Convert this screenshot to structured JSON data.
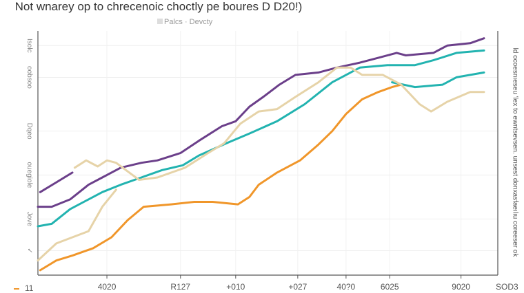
{
  "title": "Not wnarey op to chrecenoic choctly pe boures D D20!)",
  "legend": {
    "label": "Palcs · Devcty",
    "swatch": "#dddddd"
  },
  "corner_note": "11",
  "right_label": "ld ocoesnıeseu 'lex to ewntsevsen. unsest donxasfaeılıu coreeser ok",
  "chart_data": {
    "type": "line",
    "title": "Not wnarey op to chrecenoic choctly pe boures D D20!)",
    "xlim": [
      0,
      100
    ],
    "ylim": [
      0,
      100
    ],
    "grid": true,
    "legend_position": "top",
    "x_ticks": [
      {
        "value": 15,
        "label": "4020"
      },
      {
        "value": 31,
        "label": "R127"
      },
      {
        "value": 43,
        "label": "+010"
      },
      {
        "value": 56.5,
        "label": "+027"
      },
      {
        "value": 67,
        "label": "40?0"
      },
      {
        "value": 76.5,
        "label": "6025"
      },
      {
        "value": 92,
        "label": "9020"
      },
      {
        "value": 102,
        "label": "SOD3"
      }
    ],
    "y_ticks": [
      {
        "value": 94,
        "label": "Isolc"
      },
      {
        "value": 81,
        "label": "oobsoo"
      },
      {
        "value": 59,
        "label": "Dqeo"
      },
      {
        "value": 41,
        "label": "ouegiole"
      },
      {
        "value": 23,
        "label": "Jove"
      },
      {
        "value": 10,
        "label": "✓"
      }
    ],
    "series": [
      {
        "color": "#6b3f8a",
        "points": [
          [
            0.5,
            34
          ],
          [
            4,
            38
          ],
          [
            7.5,
            42
          ]
        ]
      },
      {
        "color": "#6b3f8a",
        "points": [
          [
            0,
            28
          ],
          [
            3,
            28
          ],
          [
            7,
            31
          ],
          [
            11,
            37
          ],
          [
            14,
            40
          ],
          [
            18,
            44
          ],
          [
            22.5,
            46
          ],
          [
            26,
            47
          ],
          [
            31,
            50
          ],
          [
            35,
            55
          ],
          [
            40,
            61
          ],
          [
            43,
            63
          ],
          [
            46,
            69
          ],
          [
            49,
            73
          ],
          [
            52.5,
            78
          ],
          [
            56,
            82
          ],
          [
            61,
            83
          ],
          [
            65,
            85
          ],
          [
            70,
            87
          ],
          [
            74,
            89
          ],
          [
            78,
            91
          ],
          [
            80,
            90
          ],
          [
            86,
            91
          ],
          [
            89,
            94
          ],
          [
            94,
            95
          ],
          [
            97,
            97
          ]
        ]
      },
      {
        "color": "#22b3b0",
        "points": [
          [
            0,
            20
          ],
          [
            3,
            21
          ],
          [
            7,
            27
          ],
          [
            11,
            31
          ],
          [
            14,
            34
          ],
          [
            18,
            37
          ],
          [
            22.5,
            40
          ],
          [
            27,
            43
          ],
          [
            31.5,
            45
          ],
          [
            35,
            49
          ],
          [
            41,
            54
          ],
          [
            46,
            58
          ],
          [
            52,
            63
          ],
          [
            58,
            70
          ],
          [
            64,
            79
          ],
          [
            70,
            85
          ],
          [
            76,
            86
          ],
          [
            82,
            86
          ],
          [
            86,
            88
          ],
          [
            91,
            91
          ],
          [
            97,
            92
          ]
        ]
      },
      {
        "color": "#22b3b0",
        "points": [
          [
            77,
            79
          ],
          [
            82,
            77
          ],
          [
            88,
            78
          ],
          [
            91,
            81
          ],
          [
            97,
            83
          ]
        ]
      },
      {
        "color": "#f0962a",
        "points": [
          [
            0.5,
            2
          ],
          [
            4,
            6
          ],
          [
            7.5,
            8
          ],
          [
            12,
            11
          ],
          [
            16,
            15.5
          ],
          [
            19.5,
            22.5
          ],
          [
            23,
            28
          ],
          [
            29,
            29
          ],
          [
            34,
            30
          ],
          [
            38,
            30
          ],
          [
            43.5,
            29
          ],
          [
            46,
            32
          ],
          [
            48,
            37
          ],
          [
            52,
            42
          ],
          [
            57,
            47
          ],
          [
            61,
            53.5
          ],
          [
            64,
            59
          ],
          [
            67,
            66
          ],
          [
            70.5,
            72
          ],
          [
            74,
            75
          ],
          [
            77,
            77
          ],
          [
            79,
            78
          ]
        ]
      },
      {
        "color": "#e6d3a8",
        "points": [
          [
            0,
            6
          ],
          [
            4,
            13
          ],
          [
            7.5,
            15.5
          ],
          [
            11,
            18
          ],
          [
            14,
            28
          ],
          [
            17,
            35
          ]
        ]
      },
      {
        "color": "#e6d3a8",
        "points": [
          [
            8,
            44
          ],
          [
            10.5,
            47
          ],
          [
            13,
            44.5
          ],
          [
            15,
            47
          ],
          [
            17,
            46
          ],
          [
            22,
            39
          ],
          [
            26,
            40
          ],
          [
            32,
            44
          ],
          [
            37,
            50
          ],
          [
            40.5,
            54
          ],
          [
            44,
            62
          ],
          [
            48,
            67
          ],
          [
            52,
            68
          ],
          [
            56,
            73
          ],
          [
            61,
            79
          ],
          [
            65,
            85
          ],
          [
            68,
            85
          ],
          [
            70.5,
            82
          ],
          [
            75,
            82
          ],
          [
            79,
            78
          ],
          [
            83,
            70
          ],
          [
            85.5,
            67
          ],
          [
            89,
            71
          ],
          [
            94,
            75
          ],
          [
            97,
            75
          ]
        ]
      }
    ]
  }
}
